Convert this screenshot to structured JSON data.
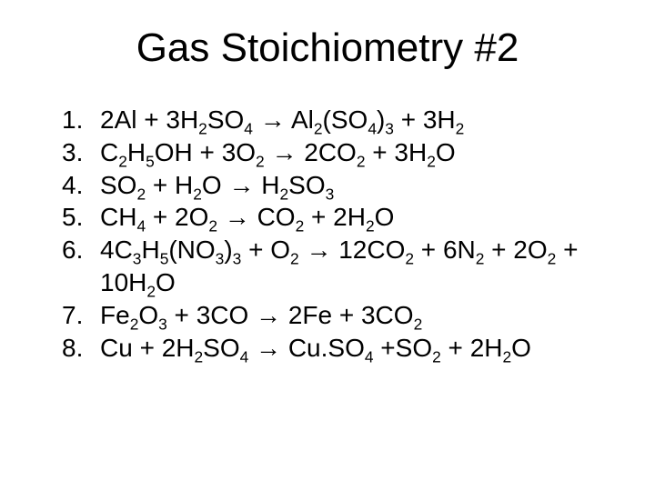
{
  "title": "Gas Stoichiometry #2",
  "background_color": "#ffffff",
  "text_color": "#000000",
  "title_fontsize": 44,
  "body_fontsize": 28,
  "arrow_glyph": "→",
  "items": [
    {
      "num": "1.",
      "eq_html": "2Al + 3H<sub>2</sub>SO<sub>4</sub> &#8594; Al<sub>2</sub>(SO<sub>4</sub>)<sub>3</sub> + 3H<sub>2</sub>"
    },
    {
      "num": "3.",
      "eq_html": "C<sub>2</sub>H<sub>5</sub>OH + 3O<sub>2</sub> &#8594; 2CO<sub>2</sub> + 3H<sub>2</sub>O"
    },
    {
      "num": "4.",
      "eq_html": "SO<sub>2</sub> + H<sub>2</sub>O &#8594; H<sub>2</sub>SO<sub>3</sub>"
    },
    {
      "num": "5.",
      "eq_html": "CH<sub>4</sub> + 2O<sub>2</sub> &#8594; CO<sub>2</sub> + 2H<sub>2</sub>O"
    },
    {
      "num": "6.",
      "eq_html": "4C<sub>3</sub>H<sub>5</sub>(NO<sub>3</sub>)<sub>3</sub> + O<sub>2</sub> &#8594; 12CO<sub>2</sub> + 6N<sub>2</sub> + 2O<sub>2</sub> + 10H<sub>2</sub>O"
    },
    {
      "num": "7.",
      "eq_html": "Fe<sub>2</sub>O<sub>3</sub> + 3CO &#8594; 2Fe + 3CO<sub>2</sub>"
    },
    {
      "num": "8.",
      "eq_html": "Cu + 2H<sub>2</sub>SO<sub>4</sub> &#8594; Cu.SO<sub>4</sub> +SO<sub>2</sub> + 2H<sub>2</sub>O"
    }
  ]
}
